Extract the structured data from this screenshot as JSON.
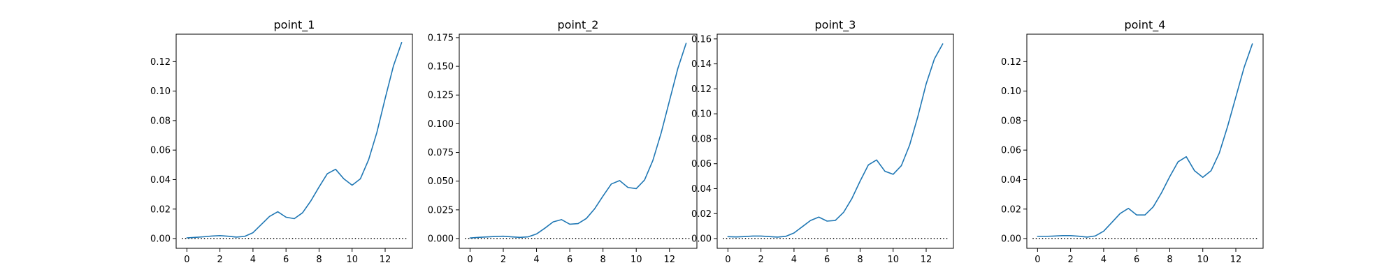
{
  "figure": {
    "background": "#ffffff",
    "series_color": "#1f77b4"
  },
  "chart_data": [
    {
      "type": "line",
      "title": "point_1",
      "xlabel": "",
      "ylabel": "",
      "xlim": [
        -0.65,
        13.65
      ],
      "ylim": [
        -0.0066,
        0.1386
      ],
      "xticks": [
        0,
        2,
        4,
        6,
        8,
        10,
        12
      ],
      "yticks": [
        0.0,
        0.02,
        0.04,
        0.06,
        0.08,
        0.1,
        0.12
      ],
      "ytick_labels": [
        "0.00",
        "0.02",
        "0.04",
        "0.06",
        "0.08",
        "0.10",
        "0.12"
      ],
      "reference_line": {
        "y": 0,
        "style": "dotted"
      },
      "grid": false,
      "series": [
        {
          "x": [
            0,
            0.5,
            1,
            1.5,
            2,
            2.5,
            3,
            3.5,
            4,
            4.5,
            5,
            5.5,
            6,
            6.5,
            7,
            7.5,
            8,
            8.5,
            9,
            9.5,
            10,
            10.5,
            11,
            11.5,
            12,
            12.5,
            13
          ],
          "values": [
            0.0005,
            0.0008,
            0.0012,
            0.0017,
            0.002,
            0.0016,
            0.001,
            0.0015,
            0.004,
            0.0095,
            0.015,
            0.0182,
            0.0145,
            0.0135,
            0.0175,
            0.0255,
            0.035,
            0.044,
            0.047,
            0.0405,
            0.0362,
            0.0405,
            0.0535,
            0.072,
            0.095,
            0.117,
            0.133
          ]
        }
      ]
    },
    {
      "type": "line",
      "title": "point_2",
      "xlabel": "",
      "ylabel": "",
      "xlim": [
        -0.65,
        13.65
      ],
      "ylim": [
        -0.0085,
        0.178
      ],
      "xticks": [
        0,
        2,
        4,
        6,
        8,
        10,
        12
      ],
      "yticks": [
        0.0,
        0.025,
        0.05,
        0.075,
        0.1,
        0.125,
        0.15,
        0.175
      ],
      "ytick_labels": [
        "0.000",
        "0.025",
        "0.050",
        "0.075",
        "0.100",
        "0.125",
        "0.150",
        "0.175"
      ],
      "reference_line": {
        "y": 0,
        "style": "dotted"
      },
      "grid": false,
      "series": [
        {
          "x": [
            0,
            0.5,
            1,
            1.5,
            2,
            2.5,
            3,
            3.5,
            4,
            4.5,
            5,
            5.5,
            6,
            6.5,
            7,
            7.5,
            8,
            8.5,
            9,
            9.5,
            10,
            10.5,
            11,
            11.5,
            12,
            12.5,
            13
          ],
          "values": [
            0.0005,
            0.001,
            0.0014,
            0.0018,
            0.002,
            0.0015,
            0.001,
            0.0015,
            0.004,
            0.009,
            0.0145,
            0.0165,
            0.0125,
            0.013,
            0.0175,
            0.026,
            0.037,
            0.0475,
            0.0505,
            0.0445,
            0.0435,
            0.051,
            0.068,
            0.092,
            0.12,
            0.148,
            0.17
          ]
        }
      ]
    },
    {
      "type": "line",
      "title": "point_3",
      "xlabel": "",
      "ylabel": "",
      "xlim": [
        -0.65,
        13.65
      ],
      "ylim": [
        -0.0078,
        0.1638
      ],
      "xticks": [
        0,
        2,
        4,
        6,
        8,
        10,
        12
      ],
      "yticks": [
        0.0,
        0.02,
        0.04,
        0.06,
        0.08,
        0.1,
        0.12,
        0.14,
        0.16
      ],
      "ytick_labels": [
        "0.00",
        "0.02",
        "0.04",
        "0.06",
        "0.08",
        "0.10",
        "0.12",
        "0.14",
        "0.16"
      ],
      "reference_line": {
        "y": 0,
        "style": "dotted"
      },
      "grid": false,
      "series": [
        {
          "x": [
            0,
            0.5,
            1,
            1.5,
            2,
            2.5,
            3,
            3.5,
            4,
            4.5,
            5,
            5.5,
            6,
            6.5,
            7,
            7.5,
            8,
            8.5,
            9,
            9.5,
            10,
            10.5,
            11,
            11.5,
            12,
            12.5,
            13
          ],
          "values": [
            0.0015,
            0.0013,
            0.0016,
            0.002,
            0.002,
            0.0016,
            0.0012,
            0.0018,
            0.0045,
            0.0095,
            0.0145,
            0.0172,
            0.014,
            0.0145,
            0.021,
            0.032,
            0.046,
            0.059,
            0.063,
            0.054,
            0.0515,
            0.0585,
            0.075,
            0.098,
            0.124,
            0.144,
            0.156
          ]
        }
      ]
    },
    {
      "type": "line",
      "title": "point_4",
      "xlabel": "",
      "ylabel": "",
      "xlim": [
        -0.65,
        13.65
      ],
      "ylim": [
        -0.0066,
        0.1386
      ],
      "xticks": [
        0,
        2,
        4,
        6,
        8,
        10,
        12
      ],
      "yticks": [
        0.0,
        0.02,
        0.04,
        0.06,
        0.08,
        0.1,
        0.12
      ],
      "ytick_labels": [
        "0.00",
        "0.02",
        "0.04",
        "0.06",
        "0.08",
        "0.10",
        "0.12"
      ],
      "reference_line": {
        "y": 0,
        "style": "dotted"
      },
      "grid": false,
      "series": [
        {
          "x": [
            0,
            0.5,
            1,
            1.5,
            2,
            2.5,
            3,
            3.5,
            4,
            4.5,
            5,
            5.5,
            6,
            6.5,
            7,
            7.5,
            8,
            8.5,
            9,
            9.5,
            10,
            10.5,
            11,
            11.5,
            12,
            12.5,
            13
          ],
          "values": [
            0.0015,
            0.0015,
            0.0017,
            0.002,
            0.002,
            0.0016,
            0.001,
            0.0018,
            0.005,
            0.011,
            0.017,
            0.0205,
            0.016,
            0.016,
            0.0215,
            0.031,
            0.042,
            0.052,
            0.0555,
            0.046,
            0.0415,
            0.046,
            0.058,
            0.076,
            0.096,
            0.116,
            0.132
          ]
        }
      ]
    }
  ]
}
